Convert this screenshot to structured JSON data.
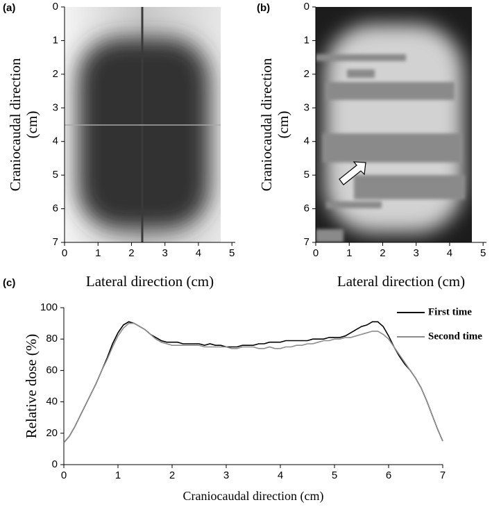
{
  "chart_data": [
    {
      "type": "image",
      "panel_label": "(a)",
      "xlabel": "Lateral direction (cm)",
      "ylabel": [
        "Craniocaudal direction",
        "(cm)"
      ],
      "xlim": [
        0,
        5.1
      ],
      "xticks": [
        0,
        1,
        2,
        3,
        4,
        5
      ],
      "ylim": [
        7,
        0
      ],
      "yticks": [
        0,
        1,
        2,
        3,
        4,
        5,
        6,
        7
      ]
    },
    {
      "type": "image",
      "panel_label": "(b)",
      "xlabel": "Lateral direction (cm)",
      "ylabel": [
        "Craniocaudal direction",
        "(cm)"
      ],
      "xlim": [
        0,
        5.1
      ],
      "xticks": [
        0,
        1,
        2,
        3,
        4,
        5
      ],
      "ylim": [
        7,
        0
      ],
      "yticks": [
        0,
        1,
        2,
        3,
        4,
        5,
        6,
        7
      ]
    },
    {
      "type": "line",
      "panel_label": "(c)",
      "xlabel": "Craniocaudal direction (cm)",
      "ylabel": "Relative dose (%)",
      "xlim": [
        0,
        7
      ],
      "xticks": [
        0,
        1,
        2,
        3,
        4,
        5,
        6,
        7
      ],
      "ylim": [
        0,
        100
      ],
      "yticks": [
        0,
        20,
        40,
        60,
        80,
        100
      ],
      "legend": "upper right",
      "grid": false,
      "x": [
        0,
        0.1,
        0.2,
        0.3,
        0.4,
        0.5,
        0.6,
        0.7,
        0.8,
        0.9,
        1,
        1.1,
        1.2,
        1.3,
        1.4,
        1.5,
        1.6,
        1.7,
        1.8,
        1.9,
        2,
        2.1,
        2.2,
        2.3,
        2.4,
        2.5,
        2.6,
        2.7,
        2.8,
        2.9,
        3,
        3.1,
        3.2,
        3.3,
        3.4,
        3.5,
        3.6,
        3.7,
        3.8,
        3.9,
        4,
        4.1,
        4.2,
        4.3,
        4.4,
        4.5,
        4.6,
        4.7,
        4.8,
        4.9,
        5,
        5.1,
        5.2,
        5.3,
        5.4,
        5.5,
        5.6,
        5.7,
        5.8,
        5.9,
        6,
        6.1,
        6.2,
        6.3,
        6.4,
        6.5,
        6.6,
        6.7,
        6.8,
        6.9,
        7
      ],
      "series": [
        {
          "name": "First time",
          "color": "#000000",
          "values": [
            14,
            18,
            24,
            31,
            38,
            45,
            52,
            60,
            68,
            77,
            84,
            89,
            91,
            90,
            88,
            86,
            83,
            81,
            79,
            78,
            78,
            78,
            77,
            77,
            77,
            77,
            76,
            77,
            76,
            76,
            75,
            75,
            75,
            76,
            76,
            76,
            77,
            77,
            78,
            78,
            78,
            79,
            79,
            79,
            79,
            79,
            80,
            80,
            80,
            81,
            81,
            81,
            82,
            84,
            86,
            88,
            89,
            91,
            91,
            88,
            82,
            75,
            69,
            64,
            60,
            55,
            49,
            41,
            32,
            23,
            15
          ]
        },
        {
          "name": "Second time",
          "color": "#8c8c8c",
          "values": [
            14,
            18,
            24,
            31,
            38,
            45,
            52,
            60,
            67,
            75,
            82,
            87,
            90,
            90,
            88,
            86,
            83,
            80,
            78,
            77,
            76,
            76,
            76,
            76,
            76,
            76,
            75,
            75,
            75,
            75,
            75,
            74,
            74,
            75,
            75,
            75,
            74,
            74,
            75,
            74,
            74,
            75,
            75,
            76,
            76,
            77,
            77,
            78,
            79,
            79,
            80,
            80,
            81,
            81,
            82,
            83,
            84,
            85,
            85,
            83,
            80,
            75,
            70,
            65,
            60,
            55,
            49,
            41,
            32,
            23,
            15
          ]
        }
      ]
    }
  ]
}
